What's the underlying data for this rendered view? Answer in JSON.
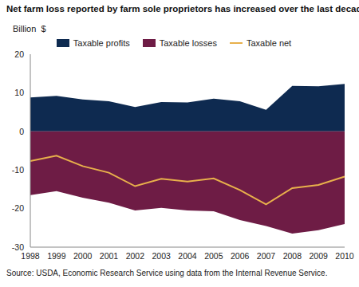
{
  "chart_data": {
    "type": "area",
    "title": "Net farm loss reported by farm sole proprietors has increased over the last decade",
    "y_label": "Billion  $",
    "source": "Source: USDA, Economic Research Service using data from the Internal Revenue Service.",
    "categories": [
      "1998",
      "1999",
      "2000",
      "2001",
      "2002",
      "2003",
      "2004",
      "2005",
      "2006",
      "2007",
      "2008",
      "2009",
      "2010"
    ],
    "series": [
      {
        "name": "Taxable profits",
        "type": "area",
        "color": "#0e2a50",
        "values": [
          8.8,
          9.2,
          8.3,
          7.8,
          6.3,
          7.6,
          7.5,
          8.5,
          7.8,
          5.6,
          11.8,
          11.7,
          12.3
        ]
      },
      {
        "name": "Taxable losses",
        "type": "area",
        "color": "#6e1c45",
        "values": [
          -16.5,
          -15.5,
          -17.2,
          -18.5,
          -20.5,
          -19.8,
          -20.5,
          -20.7,
          -23.0,
          -24.5,
          -26.5,
          -25.6,
          -24.0
        ]
      },
      {
        "name": "Taxable net",
        "type": "line",
        "color": "#e8b04b",
        "values": [
          -7.7,
          -6.3,
          -9.0,
          -10.7,
          -14.2,
          -12.3,
          -13.0,
          -12.2,
          -15.2,
          -18.9,
          -14.7,
          -13.9,
          -11.7
        ]
      }
    ],
    "ylim": [
      -30,
      20
    ],
    "yticks": [
      -30,
      -20,
      -10,
      0,
      10,
      20
    ],
    "grid": false,
    "legend": "top"
  }
}
